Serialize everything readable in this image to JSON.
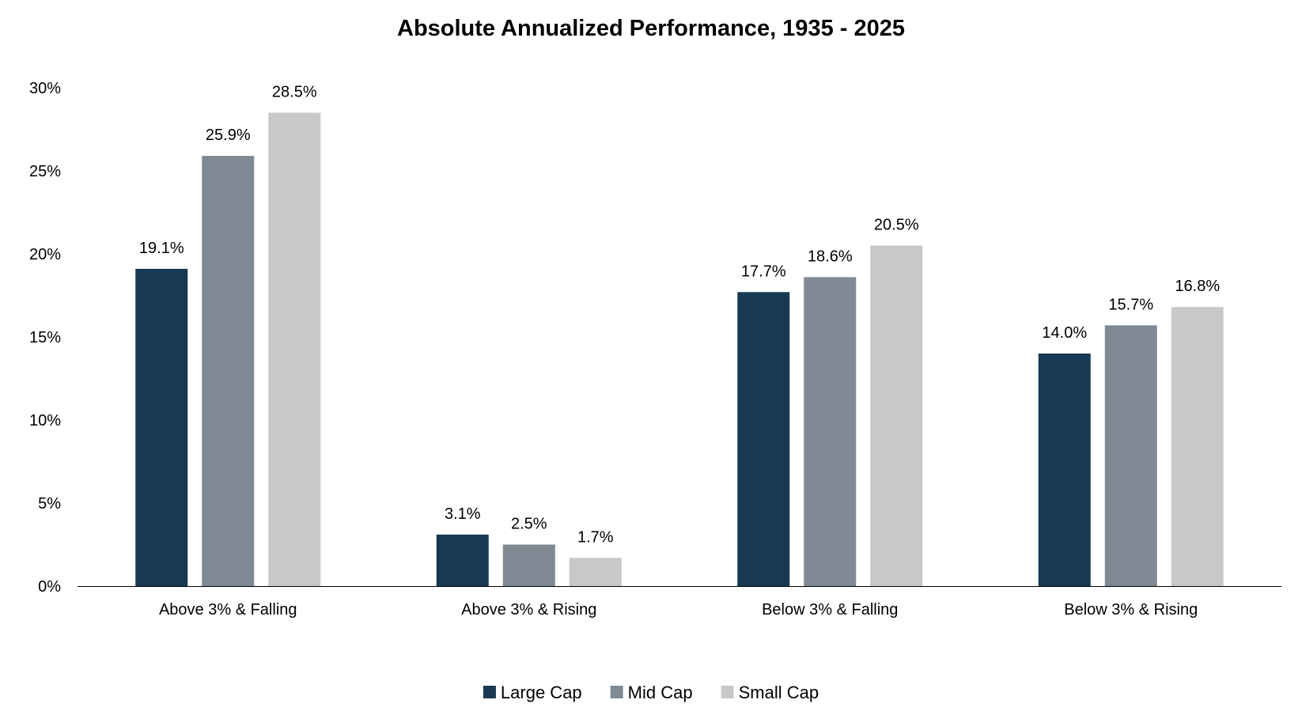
{
  "chart_data": {
    "type": "bar",
    "title": "Absolute Annualized Performance, 1935 - 2025",
    "xlabel": "",
    "ylabel": "",
    "categories": [
      "Above 3% & Falling",
      "Above 3% & Rising",
      "Below 3% & Falling",
      "Below 3% & Rising"
    ],
    "series": [
      {
        "name": "Large Cap",
        "color": "#173a52",
        "values": [
          19.1,
          3.1,
          17.7,
          14.0
        ],
        "labels": [
          "19.1%",
          "3.1%",
          "17.7%",
          "14.0%"
        ]
      },
      {
        "name": "Mid Cap",
        "color": "#7f8a94",
        "values": [
          25.9,
          2.5,
          18.6,
          15.7
        ],
        "labels": [
          "25.9%",
          "2.5%",
          "18.6%",
          "15.7%"
        ]
      },
      {
        "name": "Small Cap",
        "color": "#c8c8c8",
        "values": [
          28.5,
          1.7,
          20.5,
          16.8
        ],
        "labels": [
          "28.5%",
          "1.7%",
          "20.5%",
          "16.8%"
        ]
      }
    ],
    "ylim": [
      0,
      30
    ],
    "yticks": [
      0,
      5,
      10,
      15,
      20,
      25,
      30
    ],
    "ytick_labels": [
      "0%",
      "5%",
      "10%",
      "15%",
      "20%",
      "25%",
      "30%"
    ],
    "grid": false,
    "legend_position": "bottom-center"
  }
}
